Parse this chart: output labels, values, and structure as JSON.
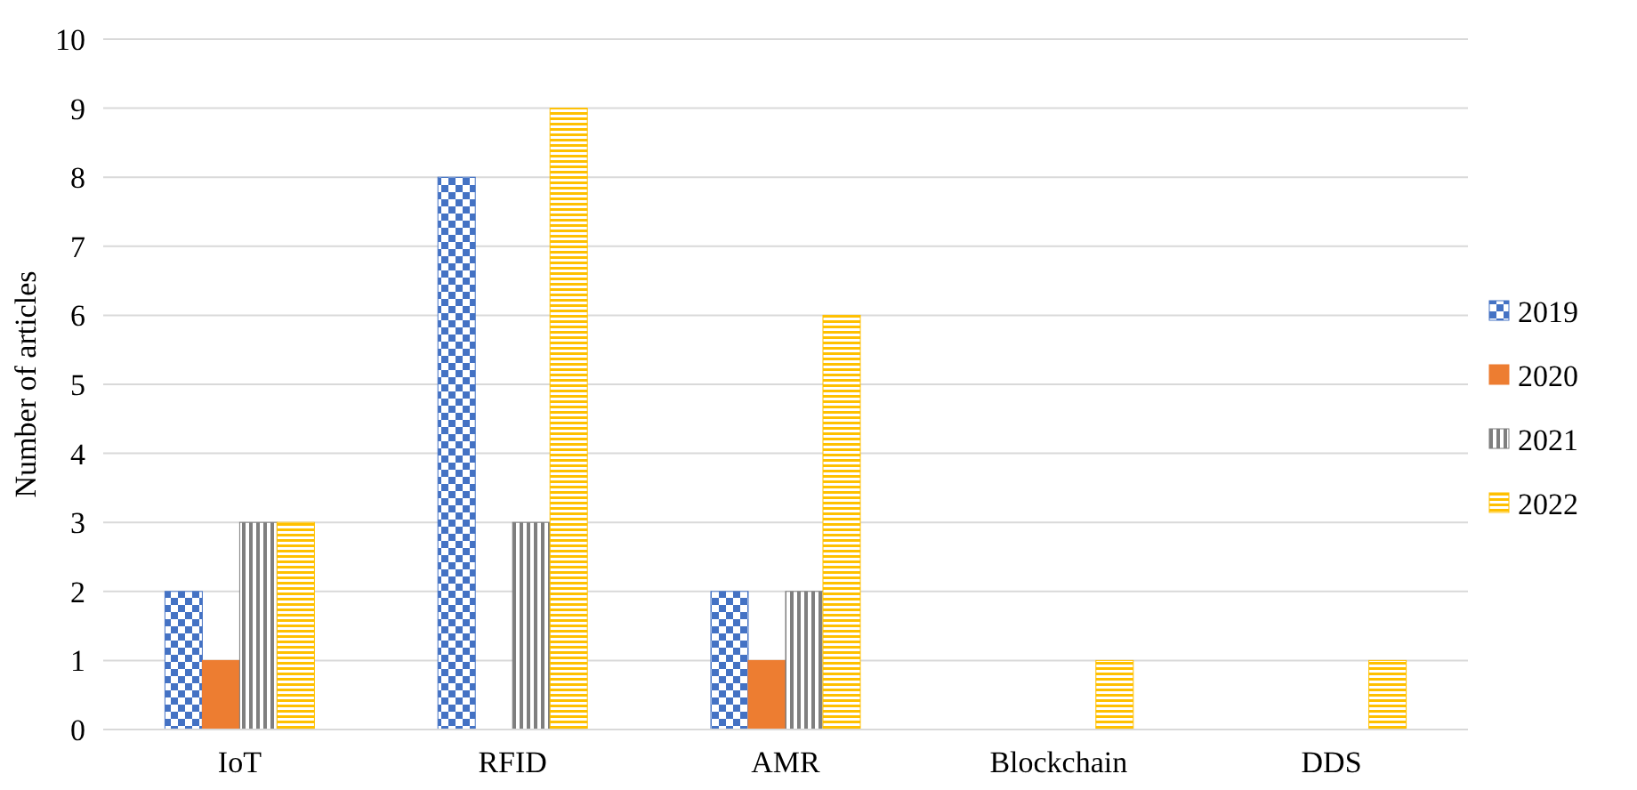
{
  "chart_data": {
    "type": "bar",
    "ylabel": "Number of articles",
    "categories": [
      "IoT",
      "RFID",
      "AMR",
      "Blockchain",
      "DDS"
    ],
    "series": [
      {
        "name": "2019",
        "color": "#4472c4",
        "values": [
          2,
          8,
          2,
          0,
          0
        ]
      },
      {
        "name": "2020",
        "color": "#ed7d31",
        "values": [
          1,
          0,
          1,
          0,
          0
        ]
      },
      {
        "name": "2021",
        "color": "#7f7f7f",
        "values": [
          3,
          3,
          2,
          0,
          0
        ]
      },
      {
        "name": "2022",
        "color": "#ffc000",
        "values": [
          3,
          9,
          6,
          1,
          1
        ]
      }
    ],
    "ylim": [
      0,
      10
    ],
    "yticks": [
      0,
      1,
      2,
      3,
      4,
      5,
      6,
      7,
      8,
      9,
      10
    ],
    "grid": "y",
    "legend": "right"
  }
}
